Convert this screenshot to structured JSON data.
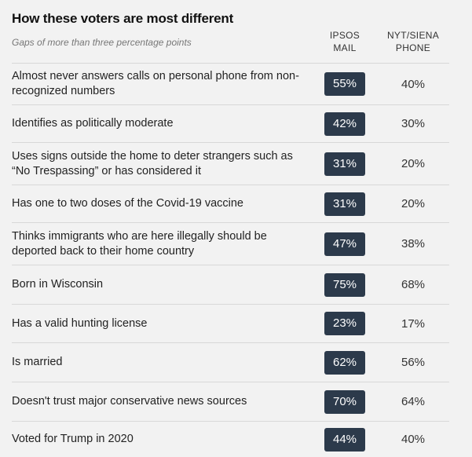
{
  "chart_data": {
    "type": "table",
    "title": "How these voters are most different",
    "subtitle": "Gaps of more than three percentage points",
    "columns": [
      {
        "line1": "IPSOS",
        "line2": "MAIL"
      },
      {
        "line1": "NYT/SIENA",
        "line2": "PHONE"
      }
    ],
    "rows": [
      {
        "label": "Almost never answers calls on personal phone from non-recognized numbers",
        "ipsos": "55%",
        "nyt": "40%"
      },
      {
        "label": "Identifies as politically moderate",
        "ipsos": "42%",
        "nyt": "30%"
      },
      {
        "label": "Uses signs outside the home to deter strangers such as “No Trespassing” or has considered it",
        "ipsos": "31%",
        "nyt": "20%"
      },
      {
        "label": "Has one to two doses of the Covid-19 vaccine",
        "ipsos": "31%",
        "nyt": "20%"
      },
      {
        "label": "Thinks immigrants who are here illegally should be deported back to their home country",
        "ipsos": "47%",
        "nyt": "38%"
      },
      {
        "label": "Born in Wisconsin",
        "ipsos": "75%",
        "nyt": "68%"
      },
      {
        "label": "Has a valid hunting license",
        "ipsos": "23%",
        "nyt": "17%"
      },
      {
        "label": "Is married",
        "ipsos": "62%",
        "nyt": "56%"
      },
      {
        "label": "Doesn't trust major conservative news sources",
        "ipsos": "70%",
        "nyt": "64%"
      },
      {
        "label": "Voted for Trump in 2020",
        "ipsos": "44%",
        "nyt": "40%"
      }
    ],
    "colors": {
      "pill": "#2c3a4b",
      "background": "#f2f2f2",
      "divider": "#d8d8d8"
    }
  }
}
